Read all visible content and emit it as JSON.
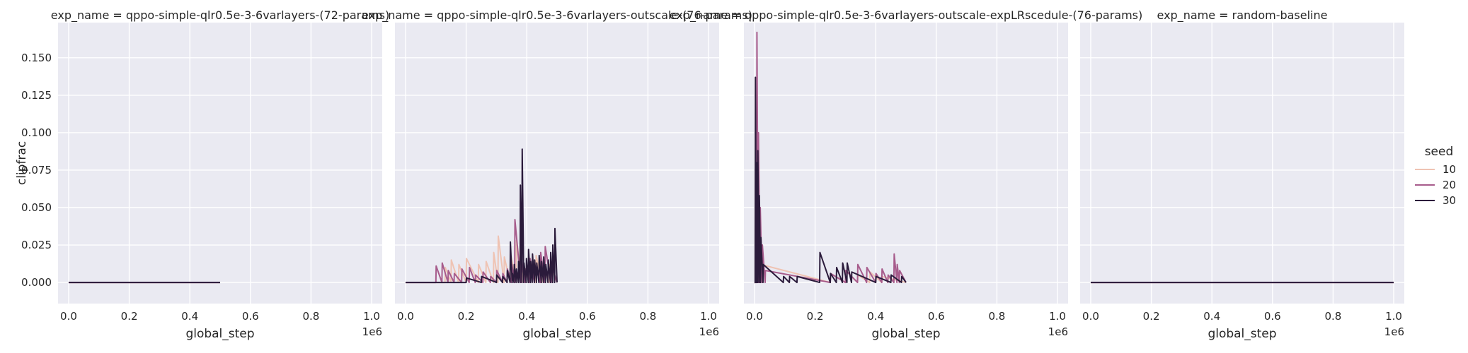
{
  "chart_data": {
    "type": "line",
    "x_offset_label": "1e6",
    "ylabel": "clipfrac",
    "xlabel": "global_step",
    "xlim": [
      -35000,
      1035000
    ],
    "ylim": [
      -0.0141,
      0.1735
    ],
    "xticks": [
      0,
      200000,
      400000,
      600000,
      800000,
      1000000
    ],
    "xtick_labels": [
      "0.0",
      "0.2",
      "0.4",
      "0.6",
      "0.8",
      "1.0"
    ],
    "yticks": [
      0,
      0.025,
      0.05,
      0.075,
      0.1,
      0.125,
      0.15
    ],
    "ytick_labels": [
      "0.000",
      "0.025",
      "0.050",
      "0.075",
      "0.100",
      "0.125",
      "0.150"
    ],
    "grid": true,
    "background": "#eaeaf2",
    "legend": {
      "title": "seed",
      "position": "right",
      "entries": [
        {
          "label": "10",
          "color": "#efc3b3"
        },
        {
          "label": "20",
          "color": "#a75c8c"
        },
        {
          "label": "30",
          "color": "#2b1b3b"
        }
      ]
    },
    "panels": [
      {
        "title": "exp_name = qppo-simple-qlr0.5e-3-6varlayers-(72-params)",
        "series": [
          {
            "seed": "10",
            "x": [
              0,
              500000
            ],
            "y": [
              0,
              0
            ]
          },
          {
            "seed": "20",
            "x": [
              0,
              500000
            ],
            "y": [
              0,
              0
            ]
          },
          {
            "seed": "30",
            "x": [
              0,
              500000
            ],
            "y": [
              0,
              0
            ]
          }
        ]
      },
      {
        "title": "exp_name = qppo-simple-qlr0.5e-3-6varlayers-outscale-(76-params)",
        "series": [
          {
            "seed": "10",
            "x": [
              0,
              130000,
              131000,
              150000,
              151000,
              175000,
              176000,
              200000,
              201000,
              240000,
              241000,
              265000,
              266000,
              290000,
              291000,
              305000,
              306000,
              325000,
              326000,
              345000,
              346000,
              365000,
              366000,
              385000,
              386000,
              410000,
              411000,
              430000,
              431000,
              450000,
              451000,
              475000,
              476000,
              500000
            ],
            "y": [
              0,
              0,
              0.01,
              0,
              0.015,
              0,
              0.012,
              0,
              0.016,
              0,
              0.012,
              0,
              0.014,
              0,
              0.02,
              0,
              0.031,
              0,
              0.017,
              0,
              0.02,
              0,
              0.028,
              0,
              0.012,
              0,
              0.015,
              0,
              0.018,
              0,
              0.01,
              0,
              0.012,
              0
            ]
          },
          {
            "seed": "20",
            "x": [
              0,
              100000,
              101000,
              120000,
              121000,
              140000,
              141000,
              160000,
              161000,
              185000,
              186000,
              210000,
              211000,
              230000,
              231000,
              255000,
              256000,
              280000,
              281000,
              300000,
              301000,
              320000,
              321000,
              335000,
              336000,
              350000,
              351000,
              360000,
              361000,
              380000,
              381000,
              395000,
              396000,
              410000,
              411000,
              425000,
              426000,
              445000,
              446000,
              460000,
              461000,
              480000,
              481000,
              500000
            ],
            "y": [
              0,
              0,
              0.011,
              0,
              0.013,
              0,
              0.008,
              0,
              0.006,
              0,
              0.009,
              0,
              0.01,
              0,
              0.005,
              0,
              0.007,
              0,
              0.004,
              0,
              0.008,
              0,
              0.006,
              0,
              0.009,
              0,
              0.012,
              0,
              0.042,
              0,
              0.017,
              0,
              0.009,
              0,
              0.016,
              0,
              0.012,
              0,
              0.02,
              0,
              0.024,
              0,
              0.012,
              0
            ]
          },
          {
            "seed": "30",
            "x": [
              0,
              200000,
              201000,
              250000,
              251000,
              300000,
              301000,
              320000,
              321000,
              335000,
              336000,
              345000,
              346000,
              352000,
              353000,
              358000,
              359000,
              365000,
              366000,
              372000,
              373000,
              378000,
              379000,
              384000,
              385000,
              390000,
              391000,
              398000,
              399000,
              405000,
              406000,
              412000,
              413000,
              418000,
              419000,
              425000,
              426000,
              432000,
              433000,
              440000,
              441000,
              448000,
              449000,
              455000,
              456000,
              462000,
              463000,
              470000,
              471000,
              478000,
              479000,
              485000,
              486000,
              492000,
              493000,
              500000
            ],
            "y": [
              0,
              0,
              0.003,
              0,
              0.004,
              0,
              0.005,
              0,
              0.004,
              0,
              0.008,
              0,
              0.027,
              0,
              0.006,
              0,
              0.012,
              0,
              0.009,
              0,
              0.014,
              0,
              0.065,
              0,
              0.089,
              0,
              0.013,
              0,
              0.016,
              0,
              0.022,
              0,
              0.014,
              0,
              0.019,
              0,
              0.015,
              0,
              0.013,
              0,
              0.018,
              0,
              0.014,
              0,
              0.017,
              0,
              0.012,
              0,
              0.015,
              0,
              0.02,
              0,
              0.025,
              0,
              0.036,
              0
            ]
          }
        ]
      },
      {
        "title": "exp_name = qppo-simple-qlr0.5e-3-6varlayers-outscale-expLRscedule-(76-params)",
        "series": [
          {
            "seed": "10",
            "x": [
              0,
              5000,
              6000,
              12000,
              13000,
              20000,
              21000,
              250000,
              251000,
              300000,
              301000,
              340000,
              341000,
              380000,
              381000,
              420000,
              421000,
              500000
            ],
            "y": [
              0,
              0,
              0.05,
              0,
              0.03,
              0,
              0.012,
              0,
              0.006,
              0,
              0.008,
              0,
              0.005,
              0,
              0.007,
              0,
              0.004,
              0
            ]
          },
          {
            "seed": "20",
            "x": [
              0,
              7000,
              8000,
              12000,
              13000,
              18000,
              19000,
              25000,
              26000,
              35000,
              36000,
              250000,
              251000,
              300000,
              301000,
              340000,
              341000,
              370000,
              371000,
              400000,
              401000,
              420000,
              421000,
              440000,
              441000,
              460000,
              461000,
              470000,
              471000,
              478000,
              479000,
              500000
            ],
            "y": [
              0,
              0,
              0.167,
              0,
              0.1,
              0,
              0.05,
              0,
              0.025,
              0,
              0.008,
              0,
              0.006,
              0,
              0.008,
              0,
              0.012,
              0,
              0.01,
              0,
              0.006,
              0,
              0.009,
              0,
              0.005,
              0,
              0.019,
              0,
              0.012,
              0,
              0.008,
              0
            ]
          },
          {
            "seed": "30",
            "x": [
              0,
              2000,
              3000,
              6000,
              7000,
              10000,
              11000,
              15000,
              16000,
              20000,
              21000,
              28000,
              29000,
              95000,
              96000,
              115000,
              116000,
              140000,
              141000,
              215000,
              216000,
              250000,
              251000,
              270000,
              271000,
              290000,
              291000,
              305000,
              306000,
              320000,
              321000,
              400000,
              401000,
              450000,
              451000,
              485000,
              486000,
              500000
            ],
            "y": [
              0,
              0,
              0.137,
              0,
              0.08,
              0,
              0.088,
              0,
              0.058,
              0,
              0.03,
              0,
              0.012,
              0,
              0.004,
              0,
              0.004,
              0,
              0.004,
              0,
              0.02,
              0,
              0.006,
              0,
              0.01,
              0,
              0.013,
              0,
              0.013,
              0,
              0.007,
              0,
              0.004,
              0,
              0.005,
              0,
              0.004,
              0
            ]
          }
        ]
      },
      {
        "title": "exp_name = random-baseline",
        "series": [
          {
            "seed": "10",
            "x": [
              0,
              1000000
            ],
            "y": [
              0,
              0
            ]
          },
          {
            "seed": "20",
            "x": [
              0,
              1000000
            ],
            "y": [
              0,
              0
            ]
          },
          {
            "seed": "30",
            "x": [
              0,
              1000000
            ],
            "y": [
              0,
              0
            ]
          }
        ]
      }
    ]
  }
}
